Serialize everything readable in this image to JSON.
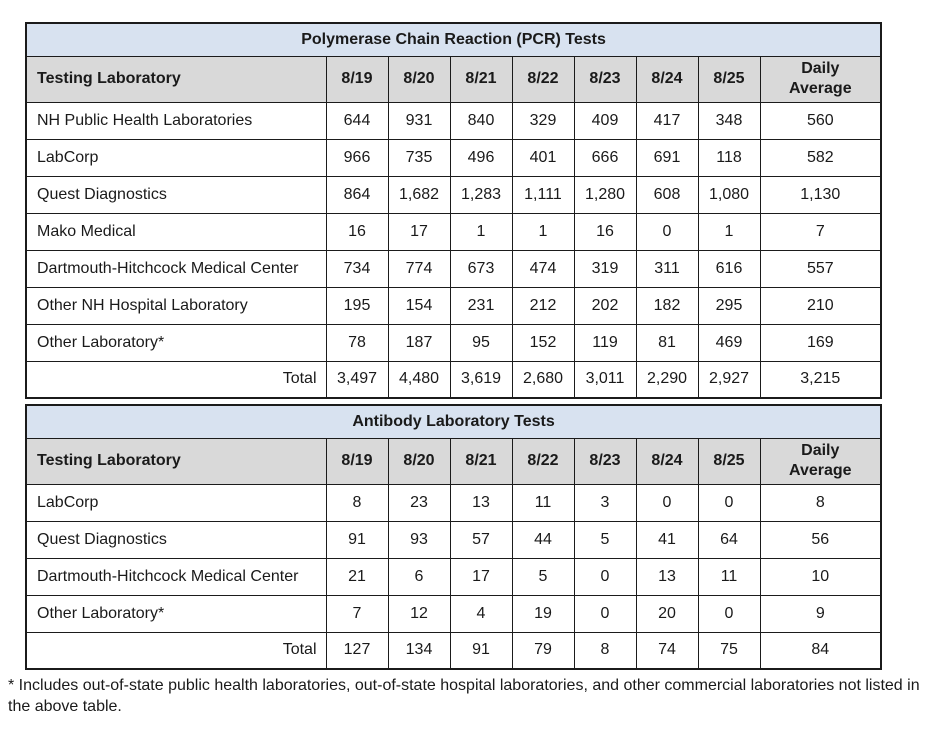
{
  "colors": {
    "title_bar_bg": "#d8e2f0",
    "header_row_bg": "#d9d9d9",
    "border": "#1b1b1b",
    "text": "#1a1a1a",
    "page_bg": "#ffffff"
  },
  "tables": [
    {
      "title": "Polymerase Chain Reaction (PCR) Tests",
      "columns": [
        "Testing Laboratory",
        "8/19",
        "8/20",
        "8/21",
        "8/22",
        "8/23",
        "8/24",
        "8/25",
        "Daily Average"
      ],
      "rows": [
        {
          "label": "NH Public Health Laboratories",
          "values": [
            "644",
            "931",
            "840",
            "329",
            "409",
            "417",
            "348",
            "560"
          ]
        },
        {
          "label": "LabCorp",
          "values": [
            "966",
            "735",
            "496",
            "401",
            "666",
            "691",
            "118",
            "582"
          ]
        },
        {
          "label": "Quest Diagnostics",
          "values": [
            "864",
            "1,682",
            "1,283",
            "1,111",
            "1,280",
            "608",
            "1,080",
            "1,130"
          ]
        },
        {
          "label": "Mako Medical",
          "values": [
            "16",
            "17",
            "1",
            "1",
            "16",
            "0",
            "1",
            "7"
          ]
        },
        {
          "label": "Dartmouth-Hitchcock Medical Center",
          "values": [
            "734",
            "774",
            "673",
            "474",
            "319",
            "311",
            "616",
            "557"
          ]
        },
        {
          "label": "Other NH Hospital Laboratory",
          "values": [
            "195",
            "154",
            "231",
            "212",
            "202",
            "182",
            "295",
            "210"
          ]
        },
        {
          "label": "Other Laboratory*",
          "values": [
            "78",
            "187",
            "95",
            "152",
            "119",
            "81",
            "469",
            "169"
          ]
        }
      ],
      "total": {
        "label": "Total",
        "values": [
          "3,497",
          "4,480",
          "3,619",
          "2,680",
          "3,011",
          "2,290",
          "2,927",
          "3,215"
        ]
      }
    },
    {
      "title": "Antibody Laboratory Tests",
      "columns": [
        "Testing Laboratory",
        "8/19",
        "8/20",
        "8/21",
        "8/22",
        "8/23",
        "8/24",
        "8/25",
        "Daily Average"
      ],
      "rows": [
        {
          "label": "LabCorp",
          "values": [
            "8",
            "23",
            "13",
            "11",
            "3",
            "0",
            "0",
            "8"
          ]
        },
        {
          "label": "Quest Diagnostics",
          "values": [
            "91",
            "93",
            "57",
            "44",
            "5",
            "41",
            "64",
            "56"
          ]
        },
        {
          "label": "Dartmouth-Hitchcock Medical Center",
          "values": [
            "21",
            "6",
            "17",
            "5",
            "0",
            "13",
            "11",
            "10"
          ]
        },
        {
          "label": "Other Laboratory*",
          "values": [
            "7",
            "12",
            "4",
            "19",
            "0",
            "20",
            "0",
            "9"
          ]
        }
      ],
      "total": {
        "label": "Total",
        "values": [
          "127",
          "134",
          "91",
          "79",
          "8",
          "74",
          "75",
          "84"
        ]
      }
    }
  ],
  "footnote": "* Includes out-of-state public health laboratories, out-of-state hospital laboratories, and other commercial laboratories not listed in the above table."
}
